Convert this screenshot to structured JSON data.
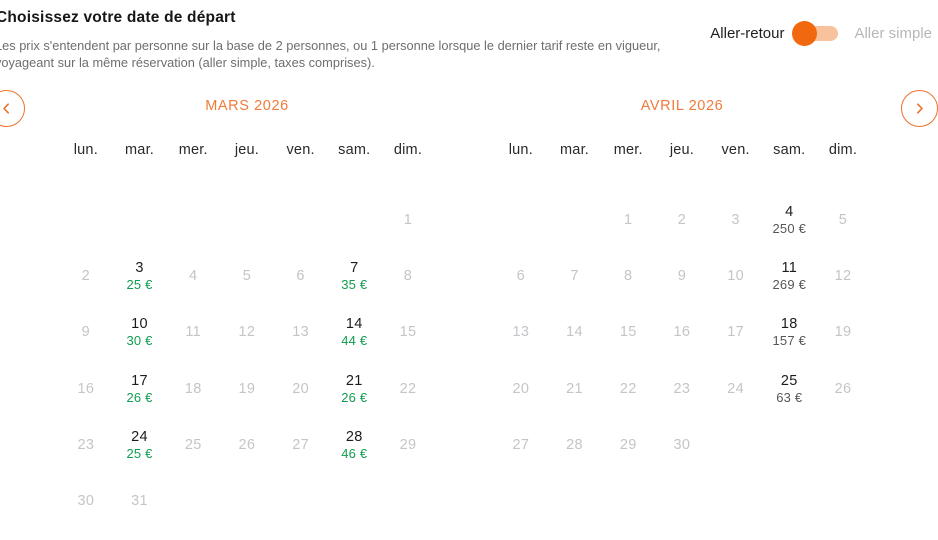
{
  "header": {
    "title": "Choisissez votre date de départ",
    "subtitle_line1": "Les prix s'entendent par personne sur la base de 2 personnes, ou 1 personne lorsque le dernier tarif reste en vigueur,",
    "subtitle_line2": "voyageant sur la même réservation (aller simple, taxes comprises).",
    "trip_toggle": {
      "round_trip_label": "Aller-retour",
      "one_way_label": "Aller simple",
      "selected": "Aller-retour"
    }
  },
  "colors": {
    "accent_orange": "#ee7125",
    "toggle_knob": "#f2680f",
    "toggle_track": "#f7c29c",
    "price_green": "#119d51",
    "price_dark": "#56575b",
    "muted_day": "#c5c5c9",
    "active_day": "#1c1c1e"
  },
  "calendars": [
    {
      "month_label": "MARS 2026",
      "weekdays": [
        "lun.",
        "mar.",
        "mer.",
        "jeu.",
        "ven.",
        "sam.",
        "dim."
      ],
      "weeks": [
        [
          null,
          null,
          null,
          null,
          null,
          null,
          {
            "day": "1"
          }
        ],
        [
          {
            "day": "2"
          },
          {
            "day": "3",
            "price": "25 €",
            "tone": "green"
          },
          {
            "day": "4"
          },
          {
            "day": "5"
          },
          {
            "day": "6"
          },
          {
            "day": "7",
            "price": "35 €",
            "tone": "green"
          },
          {
            "day": "8"
          }
        ],
        [
          {
            "day": "9"
          },
          {
            "day": "10",
            "price": "30 €",
            "tone": "green"
          },
          {
            "day": "11"
          },
          {
            "day": "12"
          },
          {
            "day": "13"
          },
          {
            "day": "14",
            "price": "44 €",
            "tone": "green"
          },
          {
            "day": "15"
          }
        ],
        [
          {
            "day": "16"
          },
          {
            "day": "17",
            "price": "26 €",
            "tone": "green"
          },
          {
            "day": "18"
          },
          {
            "day": "19"
          },
          {
            "day": "20"
          },
          {
            "day": "21",
            "price": "26 €",
            "tone": "green"
          },
          {
            "day": "22"
          }
        ],
        [
          {
            "day": "23"
          },
          {
            "day": "24",
            "price": "25 €",
            "tone": "green"
          },
          {
            "day": "25"
          },
          {
            "day": "26"
          },
          {
            "day": "27"
          },
          {
            "day": "28",
            "price": "46 €",
            "tone": "green"
          },
          {
            "day": "29"
          }
        ],
        [
          {
            "day": "30"
          },
          {
            "day": "31"
          },
          null,
          null,
          null,
          null,
          null
        ]
      ]
    },
    {
      "month_label": "AVRIL 2026",
      "weekdays": [
        "lun.",
        "mar.",
        "mer.",
        "jeu.",
        "ven.",
        "sam.",
        "dim."
      ],
      "weeks": [
        [
          null,
          null,
          {
            "day": "1"
          },
          {
            "day": "2"
          },
          {
            "day": "3"
          },
          {
            "day": "4",
            "price": "250 €",
            "tone": "dark"
          },
          {
            "day": "5"
          }
        ],
        [
          {
            "day": "6"
          },
          {
            "day": "7"
          },
          {
            "day": "8"
          },
          {
            "day": "9"
          },
          {
            "day": "10"
          },
          {
            "day": "11",
            "price": "269 €",
            "tone": "dark"
          },
          {
            "day": "12"
          }
        ],
        [
          {
            "day": "13"
          },
          {
            "day": "14"
          },
          {
            "day": "15"
          },
          {
            "day": "16"
          },
          {
            "day": "17"
          },
          {
            "day": "18",
            "price": "157 €",
            "tone": "dark"
          },
          {
            "day": "19"
          }
        ],
        [
          {
            "day": "20"
          },
          {
            "day": "21"
          },
          {
            "day": "22"
          },
          {
            "day": "23"
          },
          {
            "day": "24"
          },
          {
            "day": "25",
            "price": "63 €",
            "tone": "dark"
          },
          {
            "day": "26"
          }
        ],
        [
          {
            "day": "27"
          },
          {
            "day": "28"
          },
          {
            "day": "29"
          },
          {
            "day": "30"
          },
          null,
          null,
          null
        ],
        [
          null,
          null,
          null,
          null,
          null,
          null,
          null
        ]
      ]
    }
  ]
}
